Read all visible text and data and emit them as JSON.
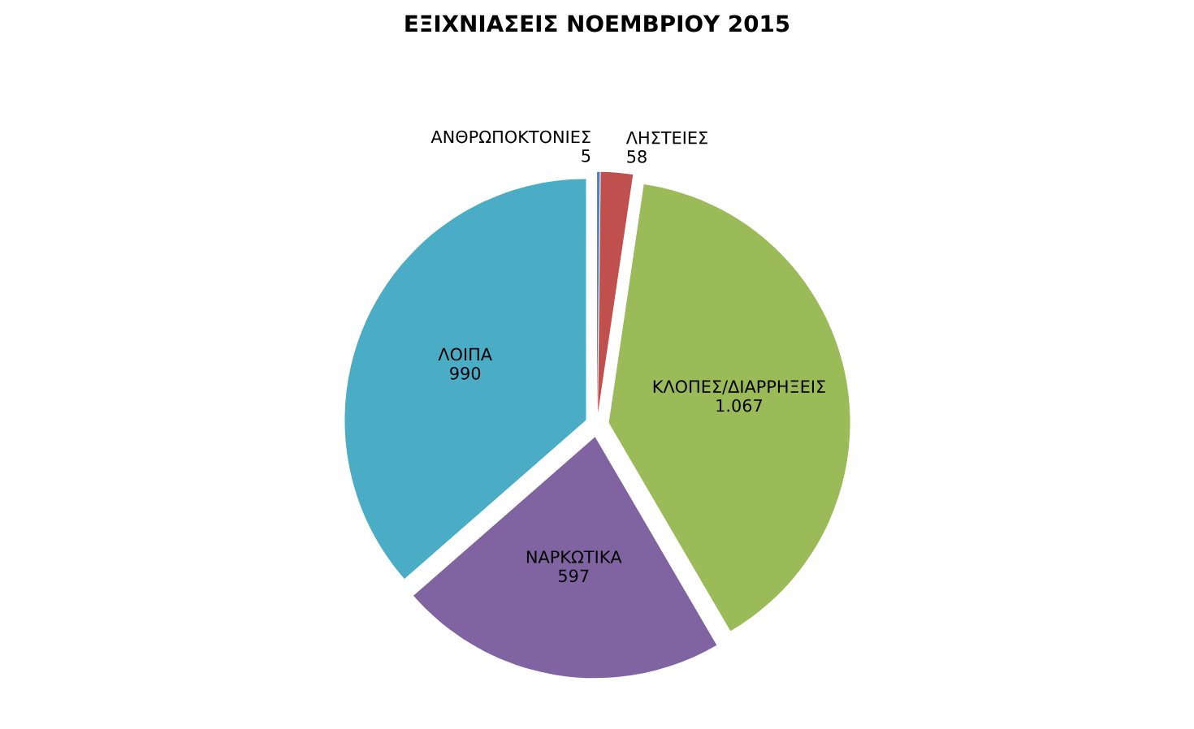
{
  "chart_data": {
    "type": "pie",
    "title": "ΕΞΙΧΝΙΑΣΕΙΣ ΝΟΕΜΒΡΙΟΥ 2015",
    "categories": [
      "ΑΝΘΡΩΠΟΚΤΟΝΙΕΣ",
      "ΛΗΣΤΕΙΕΣ",
      "ΚΛΟΠΕΣ/ΔΙΑΡΡΗΞΕΙΣ",
      "ΝΑΡΚΩΤΙΚΑ",
      "ΛΟΙΠΑ"
    ],
    "values": [
      5,
      58,
      1067,
      597,
      990
    ],
    "value_labels": [
      "5",
      "58",
      "1.067",
      "597",
      "990"
    ],
    "colors": [
      "#4f81bd",
      "#c0504d",
      "#9bbb59",
      "#8064a2",
      "#4bacc6"
    ],
    "legend": false
  }
}
